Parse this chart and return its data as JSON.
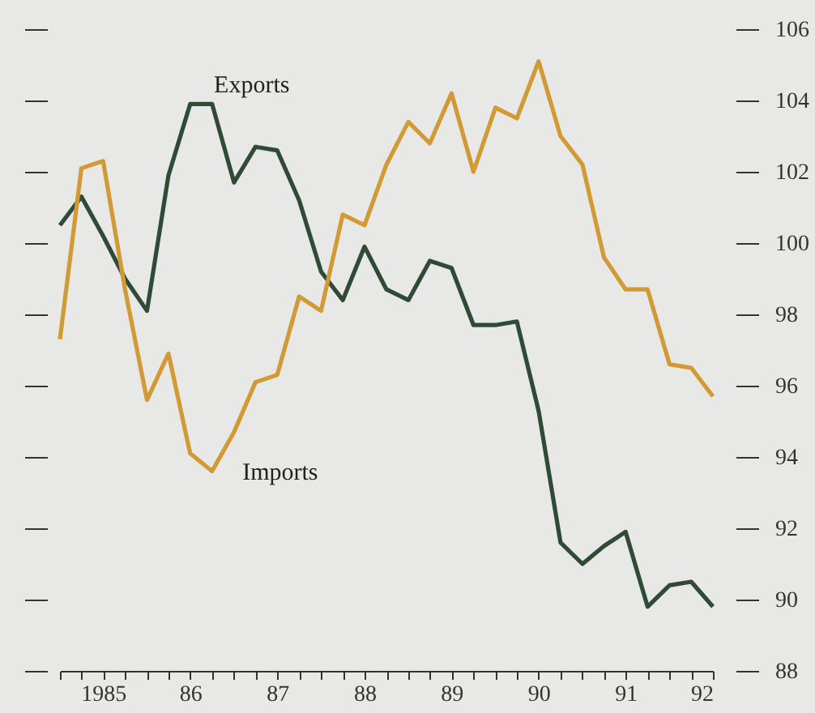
{
  "chart_data": {
    "type": "line",
    "x": [
      "1985-01",
      "1985-04",
      "1985-07",
      "1985-10",
      "1986-01",
      "1986-04",
      "1986-07",
      "1986-10",
      "1987-01",
      "1987-04",
      "1987-07",
      "1987-10",
      "1988-01",
      "1988-04",
      "1988-07",
      "1988-10",
      "1989-01",
      "1989-04",
      "1989-07",
      "1989-10",
      "1990-01",
      "1990-04",
      "1990-07",
      "1990-10",
      "1991-01",
      "1991-04",
      "1991-07",
      "1991-10",
      "1992-01",
      "1992-04",
      "1992-07"
    ],
    "series": [
      {
        "name": "Exports",
        "color": "#2f4a35",
        "values": [
          100.5,
          101.3,
          100.2,
          99.0,
          98.1,
          101.9,
          103.9,
          103.9,
          101.7,
          102.7,
          102.6,
          101.2,
          99.2,
          98.4,
          99.9,
          98.7,
          98.4,
          99.5,
          99.3,
          97.7,
          97.7,
          97.8,
          95.3,
          91.6,
          91.0,
          91.5,
          91.9,
          89.8,
          90.4,
          90.5,
          89.8
        ]
      },
      {
        "name": "Imports",
        "color": "#d19a35",
        "values": [
          97.3,
          102.1,
          102.3,
          98.7,
          95.6,
          96.9,
          94.1,
          93.6,
          94.7,
          96.1,
          96.3,
          98.5,
          98.1,
          100.8,
          100.5,
          102.2,
          103.4,
          102.8,
          104.2,
          102.0,
          103.8,
          103.5,
          105.1,
          103.0,
          102.2,
          99.6,
          98.7,
          98.7,
          96.6,
          96.5,
          95.7
        ]
      }
    ],
    "xlim": [
      "1985-01",
      "1992-07"
    ],
    "xticks": [
      {
        "value": "1985-01",
        "label": null
      },
      {
        "value": "1985-04",
        "label": null
      },
      {
        "value": "1985-07",
        "label": "1985"
      },
      {
        "value": "1985-10",
        "label": null
      },
      {
        "value": "1986-01",
        "label": null
      },
      {
        "value": "1986-04",
        "label": null
      },
      {
        "value": "1986-07",
        "label": "86"
      },
      {
        "value": "1986-10",
        "label": null
      },
      {
        "value": "1987-01",
        "label": null
      },
      {
        "value": "1987-04",
        "label": null
      },
      {
        "value": "1987-07",
        "label": "87"
      },
      {
        "value": "1987-10",
        "label": null
      },
      {
        "value": "1988-01",
        "label": null
      },
      {
        "value": "1988-04",
        "label": null
      },
      {
        "value": "1988-07",
        "label": "88"
      },
      {
        "value": "1988-10",
        "label": null
      },
      {
        "value": "1989-01",
        "label": null
      },
      {
        "value": "1989-04",
        "label": null
      },
      {
        "value": "1989-07",
        "label": "89"
      },
      {
        "value": "1989-10",
        "label": null
      },
      {
        "value": "1990-01",
        "label": null
      },
      {
        "value": "1990-04",
        "label": null
      },
      {
        "value": "1990-07",
        "label": "90"
      },
      {
        "value": "1990-10",
        "label": null
      },
      {
        "value": "1991-01",
        "label": null
      },
      {
        "value": "1991-04",
        "label": null
      },
      {
        "value": "1991-07",
        "label": "91"
      },
      {
        "value": "1991-10",
        "label": null
      },
      {
        "value": "1992-01",
        "label": null
      },
      {
        "value": "1992-04",
        "label": null
      },
      {
        "value": "1992-07",
        "label": "92"
      }
    ],
    "ylim": [
      88,
      106
    ],
    "yticks": [
      88,
      90,
      92,
      94,
      96,
      98,
      100,
      102,
      104,
      106
    ],
    "grid": false,
    "legend": false,
    "line_style": "solid"
  }
}
